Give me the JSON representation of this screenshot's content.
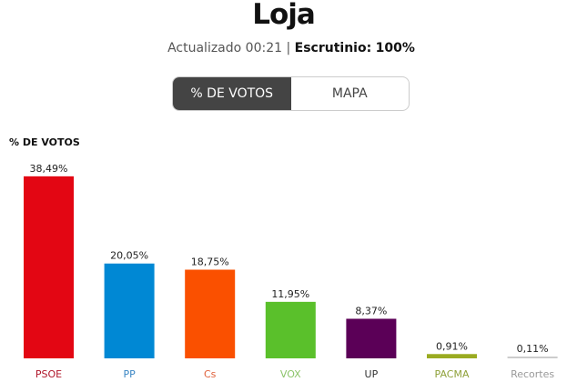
{
  "header": {
    "title": "Loja",
    "updated": "Actualizado 00:21",
    "scrutiny_label": "Escrutinio:",
    "scrutiny_value": "100%"
  },
  "tabs": [
    {
      "label": "% DE VOTOS",
      "active": true
    },
    {
      "label": "MAPA",
      "active": false
    }
  ],
  "chart_data": {
    "type": "bar",
    "ylabel": "% DE VOTOS",
    "categories": [
      "PSOE",
      "PP",
      "Cs",
      "VOX",
      "UP",
      "PACMA",
      "Recortes"
    ],
    "values": [
      38.49,
      20.05,
      18.75,
      11.95,
      8.37,
      0.91,
      0.11
    ],
    "labels": [
      "38,49%",
      "20,05%",
      "18,75%",
      "11,95%",
      "8,37%",
      "0,91%",
      "0,11%"
    ],
    "colors": [
      "#e30613",
      "#0088d4",
      "#fa5000",
      "#5ac02b",
      "#5b0057",
      "#9aab21",
      "#cccccc"
    ],
    "label_colors": [
      "#b0172b",
      "#3a86c4",
      "#e0603a",
      "#8cc46a",
      "#333333",
      "#8fa13a",
      "#999999"
    ]
  }
}
